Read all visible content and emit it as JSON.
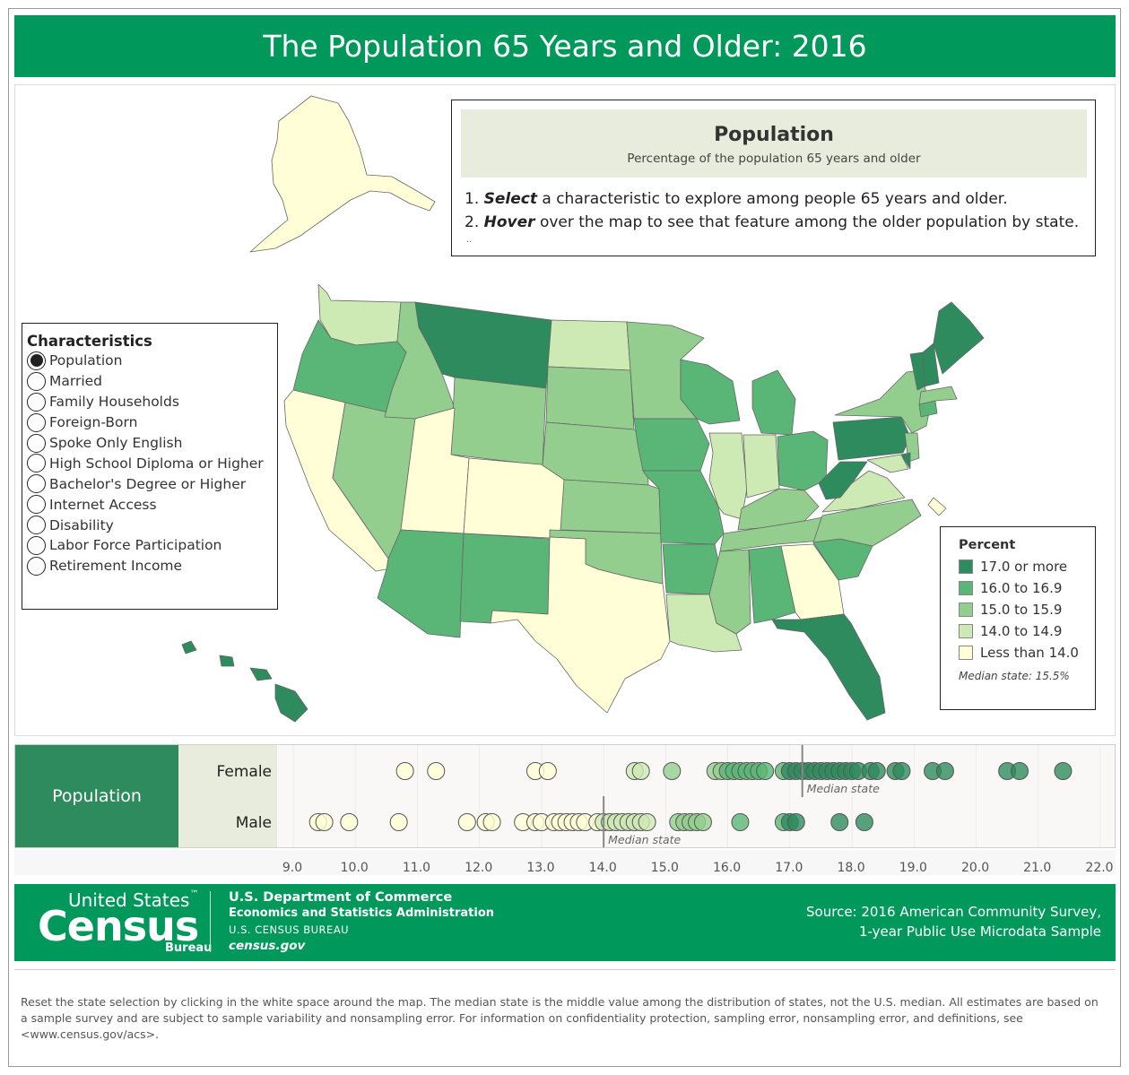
{
  "title": "The Population 65 Years and Older: 2016",
  "info": {
    "heading": "Population",
    "subheading": "Percentage of the population 65 years and older",
    "step1_num": "1.",
    "step1_action": "Select",
    "step1_text": " a characteristic to explore among people 65 years and older.",
    "step2_num": "2.",
    "step2_action": "Hover",
    "step2_text": " over the map to see that feature among the older population by state.",
    "more": ".."
  },
  "characteristics": {
    "title": "Characteristics",
    "selected_index": 0,
    "items": [
      "Population",
      "Married",
      "Family Households",
      "Foreign-Born",
      "Spoke Only English",
      "High School Diploma or Higher",
      "Bachelor's Degree or Higher",
      "Internet Access",
      "Disability",
      "Labor Force Participation",
      "Retirement Income"
    ]
  },
  "legend": {
    "title": "Percent",
    "items": [
      {
        "label": "17.0 or more",
        "color": "#2e8b5e"
      },
      {
        "label": "16.0 to 16.9",
        "color": "#5ab676"
      },
      {
        "label": "15.0 to 15.9",
        "color": "#93ce8f"
      },
      {
        "label": "14.0 to 14.9",
        "color": "#cde9b4"
      },
      {
        "label": "Less than 14.0",
        "color": "#fffed6"
      }
    ],
    "note": "Median state: 15.5%"
  },
  "chart_data": {
    "type": "scatter",
    "row_header": "Population",
    "rows": [
      {
        "name": "Female",
        "median": 17.2,
        "median_label": "Median state",
        "values": [
          10.8,
          11.3,
          12.9,
          13.1,
          14.5,
          14.6,
          15.1,
          15.8,
          15.9,
          16.0,
          16.1,
          16.2,
          16.3,
          16.4,
          16.5,
          16.6,
          16.9,
          17.0,
          17.1,
          17.2,
          17.3,
          17.4,
          17.5,
          17.6,
          17.7,
          17.8,
          17.9,
          18.0,
          18.1,
          18.3,
          18.4,
          18.7,
          18.8,
          19.3,
          19.5,
          20.5,
          20.7,
          21.4
        ]
      },
      {
        "name": "Male",
        "median": 14.0,
        "median_label": "Median state",
        "values": [
          9.4,
          9.5,
          9.9,
          10.7,
          11.8,
          12.1,
          12.2,
          12.7,
          12.9,
          13.0,
          13.2,
          13.3,
          13.4,
          13.5,
          13.6,
          13.7,
          13.9,
          14.0,
          14.1,
          14.2,
          14.3,
          14.4,
          14.5,
          14.6,
          14.7,
          15.2,
          15.3,
          15.4,
          15.5,
          15.6,
          16.2,
          16.9,
          17.0,
          17.1,
          17.8,
          18.2
        ]
      }
    ],
    "x_ticks": [
      "9.0",
      "10.0",
      "11.0",
      "12.0",
      "13.0",
      "14.0",
      "15.0",
      "16.0",
      "17.0",
      "18.0",
      "19.0",
      "20.0",
      "21.0",
      "22.0"
    ],
    "xlim": [
      9.0,
      22.0
    ],
    "grid": true
  },
  "footer": {
    "logo_line1": "United States",
    "logo_tm": "™",
    "logo_word": "Census",
    "logo_bureau": "Bureau",
    "dept_line1": "U.S. Department of Commerce",
    "dept_line2": "Economics and Statistics Administration",
    "dept_line3": "U.S. CENSUS BUREAU",
    "dept_line4": "census.gov",
    "source_line1": "Source: 2016 American Community Survey,",
    "source_line2": "1-year Public Use Microdata Sample"
  },
  "notes": "Reset the state selection by clicking in the white space around the map. The median state is the middle value among the distribution of states, not the U.S. median. All estimates are based on a sample survey and are subject to sample variability and nonsampling error. For information on confidentiality protection, sampling error, nonsampling error, and definitions, see <www.census.gov/acs>."
}
